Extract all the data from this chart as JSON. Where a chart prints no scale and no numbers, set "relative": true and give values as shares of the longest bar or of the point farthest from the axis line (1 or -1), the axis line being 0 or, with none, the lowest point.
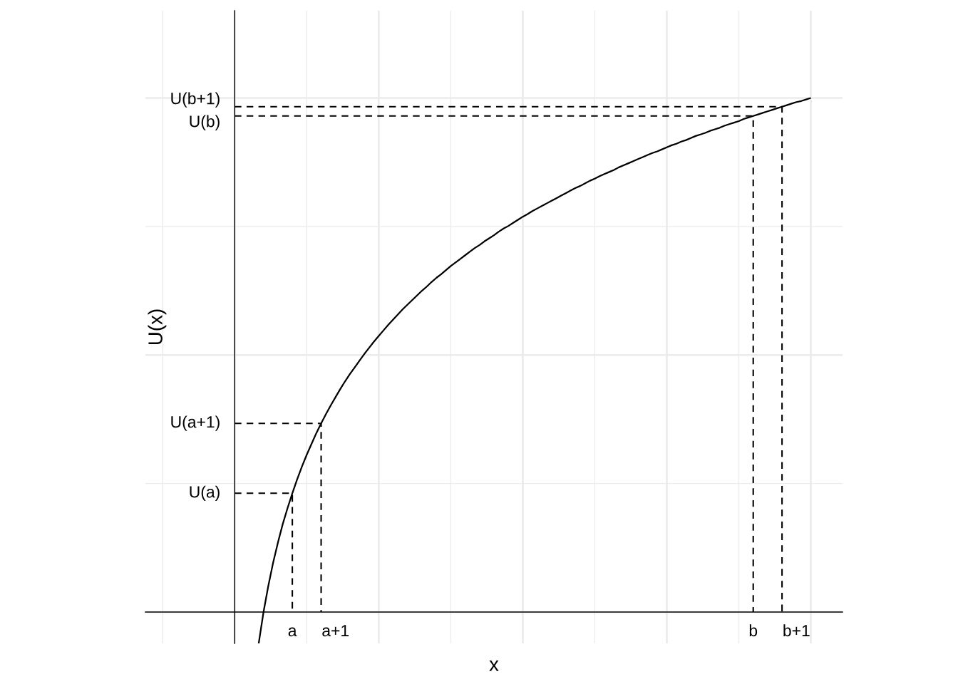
{
  "chart_data": {
    "type": "line",
    "xlabel": "x",
    "ylabel": "U(x)",
    "relative": true,
    "tick_labels": "x",
    "grid": true,
    "categories": [
      null,
      null,
      null,
      null,
      null,
      null,
      null,
      null,
      null,
      null,
      null,
      null,
      "a",
      null,
      null,
      null,
      null,
      null,
      null,
      null,
      null,
      "a+1",
      null,
      null,
      null,
      null,
      null,
      null,
      null,
      null,
      null,
      null,
      null,
      null,
      null,
      null,
      null,
      null,
      null,
      null,
      null,
      null,
      null,
      null,
      null,
      null,
      null,
      null,
      null,
      null,
      null,
      null,
      null,
      null,
      null,
      null,
      null,
      null,
      null,
      null,
      null,
      null,
      null,
      null,
      null,
      null,
      null,
      null,
      null,
      null,
      null,
      null,
      null,
      null,
      null,
      null,
      null,
      null,
      null,
      null,
      null,
      null,
      null,
      null,
      null,
      null,
      null,
      null,
      null,
      null,
      null,
      null,
      null,
      null,
      null,
      null,
      null,
      null,
      null,
      null,
      null,
      null,
      null,
      null,
      null,
      null,
      null,
      null,
      "b",
      null,
      null,
      null,
      null,
      null,
      null,
      null,
      null,
      "b+1",
      null,
      null,
      null
    ],
    "series": [
      {
        "line_style": "solid",
        "color": "#000000",
        "values": [
          null,
          null,
          null,
          null,
          null,
          -0.061,
          0,
          0.051,
          0.096,
          0.135,
          0.171,
          0.202,
          0.231,
          0.258,
          0.283,
          0.306,
          0.327,
          0.348,
          0.367,
          0.385,
          0.402,
          0.418,
          0.434,
          0.449,
          0.463,
          0.476,
          0.489,
          0.502,
          0.514,
          0.526,
          0.537,
          0.548,
          0.559,
          0.569,
          0.579,
          0.589,
          0.598,
          0.607,
          0.616,
          0.625,
          0.633,
          0.642,
          0.65,
          0.657,
          0.665,
          0.673,
          0.68,
          0.687,
          0.694,
          0.701,
          0.708,
          0.714,
          0.721,
          0.727,
          0.733,
          0.74,
          0.746,
          0.751,
          0.757,
          0.763,
          0.769,
          0.774,
          0.78,
          0.785,
          0.79,
          0.795,
          0.8,
          0.805,
          0.81,
          0.815,
          0.82,
          0.825,
          0.829,
          0.834,
          0.839,
          0.843,
          0.848,
          0.852,
          0.856,
          0.86,
          0.865,
          0.869,
          0.873,
          0.877,
          0.881,
          0.885,
          0.889,
          0.893,
          0.896,
          0.9,
          0.904,
          0.908,
          0.911,
          0.915,
          0.918,
          0.922,
          0.926,
          0.929,
          0.932,
          0.936,
          0.939,
          0.942,
          0.946,
          0.949,
          0.952,
          0.955,
          0.959,
          0.962,
          0.965,
          0.968,
          0.971,
          0.974,
          0.977,
          0.98,
          0.983,
          0.986,
          0.989,
          0.992,
          0.994,
          0.997,
          1
        ]
      },
      {
        "type": "step",
        "line_style": "dashed",
        "color": "#000000",
        "values": [
          0.231,
          0.231,
          0.231,
          0.231,
          0.231,
          0.231,
          0.231,
          0.231,
          0.231,
          0.231,
          0.231,
          0.231,
          0,
          null,
          null,
          null,
          null,
          null,
          null,
          null,
          null,
          null,
          null,
          null,
          null,
          null,
          null,
          null,
          null,
          null,
          null,
          null,
          null,
          null,
          null,
          null,
          null,
          null,
          null,
          null,
          null,
          null,
          null,
          null,
          null,
          null,
          null,
          null,
          null,
          null,
          null,
          null,
          null,
          null,
          null,
          null,
          null,
          null,
          null,
          null,
          null,
          null,
          null,
          null,
          null,
          null,
          null,
          null,
          null,
          null,
          null,
          null,
          null,
          null,
          null,
          null,
          null,
          null,
          null,
          null,
          null,
          null,
          null,
          null,
          null,
          null,
          null,
          null,
          null,
          null,
          null,
          null,
          null,
          null,
          null,
          null,
          null,
          null,
          null,
          null,
          null,
          null,
          null,
          null,
          null,
          null,
          null,
          null,
          null,
          null,
          null,
          null,
          null,
          null,
          null,
          null,
          null,
          null,
          null,
          null,
          null
        ]
      },
      {
        "type": "step",
        "line_style": "dashed",
        "color": "#000000",
        "values": [
          0.367,
          0.367,
          0.367,
          0.367,
          0.367,
          0.367,
          0.367,
          0.367,
          0.367,
          0.367,
          0.367,
          0.367,
          0.367,
          0.367,
          0.367,
          0.367,
          0.367,
          0.367,
          0,
          null,
          null,
          null,
          null,
          null,
          null,
          null,
          null,
          null,
          null,
          null,
          null,
          null,
          null,
          null,
          null,
          null,
          null,
          null,
          null,
          null,
          null,
          null,
          null,
          null,
          null,
          null,
          null,
          null,
          null,
          null,
          null,
          null,
          null,
          null,
          null,
          null,
          null,
          null,
          null,
          null,
          null,
          null,
          null,
          null,
          null,
          null,
          null,
          null,
          null,
          null,
          null,
          null,
          null,
          null,
          null,
          null,
          null,
          null,
          null,
          null,
          null,
          null,
          null,
          null,
          null,
          null,
          null,
          null,
          null,
          null,
          null,
          null,
          null,
          null,
          null,
          null,
          null,
          null,
          null,
          null,
          null,
          null,
          null,
          null,
          null,
          null,
          null,
          null,
          null,
          null,
          null,
          null,
          null,
          null,
          null,
          null,
          null,
          null,
          null,
          null,
          null
        ]
      },
      {
        "type": "step",
        "line_style": "dashed",
        "color": "#000000",
        "values": [
          0.965,
          0.965,
          0.965,
          0.965,
          0.965,
          0.965,
          0.965,
          0.965,
          0.965,
          0.965,
          0.965,
          0.965,
          0.965,
          0.965,
          0.965,
          0.965,
          0.965,
          0.965,
          0.965,
          0.965,
          0.965,
          0.965,
          0.965,
          0.965,
          0.965,
          0.965,
          0.965,
          0.965,
          0.965,
          0.965,
          0.965,
          0.965,
          0.965,
          0.965,
          0.965,
          0.965,
          0.965,
          0.965,
          0.965,
          0.965,
          0.965,
          0.965,
          0.965,
          0.965,
          0.965,
          0.965,
          0.965,
          0.965,
          0.965,
          0.965,
          0.965,
          0.965,
          0.965,
          0.965,
          0.965,
          0.965,
          0.965,
          0.965,
          0.965,
          0.965,
          0.965,
          0.965,
          0.965,
          0.965,
          0.965,
          0.965,
          0.965,
          0.965,
          0.965,
          0.965,
          0.965,
          0.965,
          0.965,
          0.965,
          0.965,
          0.965,
          0.965,
          0.965,
          0.965,
          0.965,
          0.965,
          0.965,
          0.965,
          0.965,
          0.965,
          0.965,
          0.965,
          0.965,
          0.965,
          0.965,
          0.965,
          0.965,
          0.965,
          0.965,
          0.965,
          0.965,
          0.965,
          0.965,
          0.965,
          0.965,
          0.965,
          0.965,
          0.965,
          0.965,
          0.965,
          0.965,
          0.965,
          0.965,
          0,
          null,
          null,
          null,
          null,
          null,
          null,
          null,
          null,
          null,
          null,
          null,
          null
        ]
      },
      {
        "type": "step",
        "line_style": "dashed",
        "color": "#000000",
        "values": [
          0.983,
          0.983,
          0.983,
          0.983,
          0.983,
          0.983,
          0.983,
          0.983,
          0.983,
          0.983,
          0.983,
          0.983,
          0.983,
          0.983,
          0.983,
          0.983,
          0.983,
          0.983,
          0.983,
          0.983,
          0.983,
          0.983,
          0.983,
          0.983,
          0.983,
          0.983,
          0.983,
          0.983,
          0.983,
          0.983,
          0.983,
          0.983,
          0.983,
          0.983,
          0.983,
          0.983,
          0.983,
          0.983,
          0.983,
          0.983,
          0.983,
          0.983,
          0.983,
          0.983,
          0.983,
          0.983,
          0.983,
          0.983,
          0.983,
          0.983,
          0.983,
          0.983,
          0.983,
          0.983,
          0.983,
          0.983,
          0.983,
          0.983,
          0.983,
          0.983,
          0.983,
          0.983,
          0.983,
          0.983,
          0.983,
          0.983,
          0.983,
          0.983,
          0.983,
          0.983,
          0.983,
          0.983,
          0.983,
          0.983,
          0.983,
          0.983,
          0.983,
          0.983,
          0.983,
          0.983,
          0.983,
          0.983,
          0.983,
          0.983,
          0.983,
          0.983,
          0.983,
          0.983,
          0.983,
          0.983,
          0.983,
          0.983,
          0.983,
          0.983,
          0.983,
          0.983,
          0.983,
          0.983,
          0.983,
          0.983,
          0.983,
          0.983,
          0.983,
          0.983,
          0.983,
          0.983,
          0.983,
          0.983,
          0.983,
          0.983,
          0.983,
          0.983,
          0.983,
          0.983,
          0,
          null,
          null,
          null,
          null,
          null,
          null
        ]
      }
    ],
    "annotations": [
      "U(a)",
      "U(a+1)",
      "U(b)",
      "U(b+1)"
    ]
  }
}
